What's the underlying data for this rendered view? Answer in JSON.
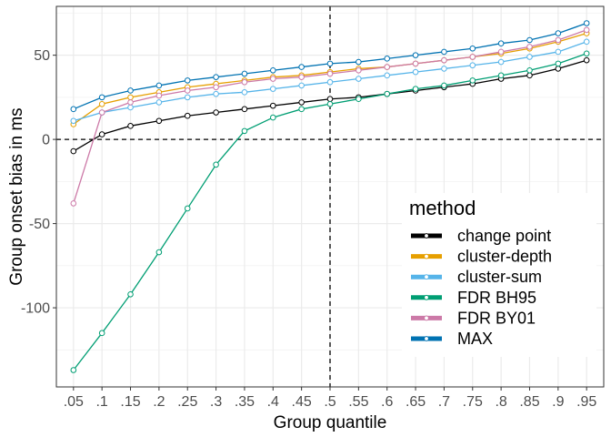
{
  "chart_data": {
    "type": "line",
    "xlabel": "Group quantile",
    "ylabel": "Group onset bias in ms",
    "x_tick_labels": [
      ".05",
      ".1",
      ".15",
      ".2",
      ".25",
      ".3",
      ".35",
      ".4",
      ".45",
      ".5",
      ".55",
      ".6",
      ".65",
      ".7",
      ".75",
      ".8",
      ".85",
      ".9",
      ".95"
    ],
    "x": [
      0.05,
      0.1,
      0.15,
      0.2,
      0.25,
      0.3,
      0.35,
      0.4,
      0.45,
      0.5,
      0.55,
      0.6,
      0.65,
      0.7,
      0.75,
      0.8,
      0.85,
      0.9,
      0.95
    ],
    "xlim": [
      0.02,
      0.98
    ],
    "y_ticks": [
      -100,
      -50,
      0,
      50
    ],
    "y_tick_labels": [
      "-100",
      "-50",
      "0",
      "50"
    ],
    "ylim": [
      -147,
      79
    ],
    "grid": true,
    "reference_lines": [
      {
        "axis": "y",
        "value": 0,
        "style": "dashed"
      },
      {
        "axis": "x",
        "value": 0.5,
        "style": "dashed"
      }
    ],
    "legend": {
      "title": "method",
      "position": "bottom-right",
      "entries": [
        "change point",
        "cluster-depth",
        "cluster-sum",
        "FDR BH95",
        "FDR BY01",
        "MAX"
      ]
    },
    "series": [
      {
        "name": "change point",
        "color": "#000000",
        "values": [
          -7,
          3,
          8,
          11,
          14,
          16,
          18,
          20,
          22,
          24,
          25,
          27,
          29,
          31,
          33,
          36,
          38,
          42,
          47
        ]
      },
      {
        "name": "cluster-depth",
        "color": "#E69F00",
        "values": [
          9,
          21,
          25,
          28,
          31,
          33,
          35,
          37,
          38,
          40,
          42,
          43,
          45,
          47,
          49,
          51,
          54,
          58,
          63
        ]
      },
      {
        "name": "cluster-sum",
        "color": "#56B4E9",
        "values": [
          11,
          16,
          19,
          22,
          25,
          27,
          28,
          30,
          32,
          34,
          36,
          38,
          40,
          42,
          44,
          46,
          49,
          52,
          58
        ]
      },
      {
        "name": "FDR BH95",
        "color": "#009E73",
        "values": [
          -137,
          -115,
          -92,
          -67,
          -41,
          -15,
          5,
          13,
          18,
          21,
          24,
          27,
          30,
          32,
          35,
          38,
          41,
          45,
          51
        ]
      },
      {
        "name": "FDR BY01",
        "color": "#CC79A7",
        "values": [
          -38,
          16,
          22,
          26,
          29,
          31,
          34,
          36,
          37,
          39,
          41,
          43,
          45,
          47,
          49,
          52,
          55,
          59,
          65
        ]
      },
      {
        "name": "MAX",
        "color": "#0072B2",
        "values": [
          18,
          25,
          29,
          32,
          35,
          37,
          39,
          41,
          43,
          45,
          46,
          48,
          50,
          52,
          54,
          57,
          59,
          63,
          69
        ]
      }
    ]
  }
}
